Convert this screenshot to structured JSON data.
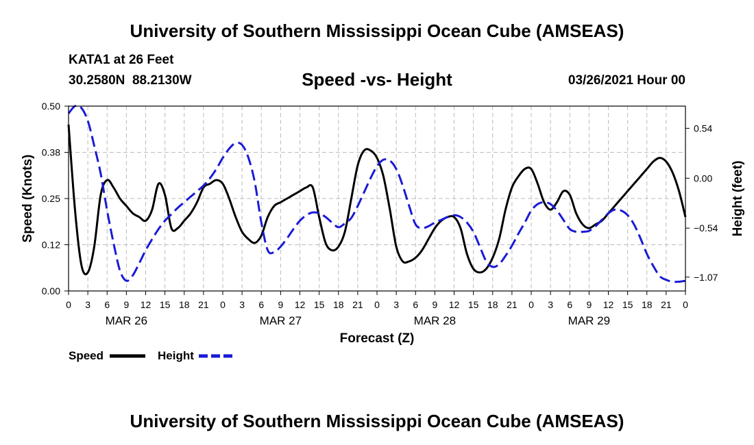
{
  "header": {
    "title": "University of Southern Mississippi Ocean Cube (AMSEAS)",
    "station": "KATA1 at 26 Feet",
    "coords": "30.2580N  88.2130W",
    "chart_title": "Speed -vs- Height",
    "timestamp": "03/26/2021 Hour 00"
  },
  "footer": {
    "title": "University of Southern Mississippi Ocean Cube (AMSEAS)"
  },
  "colors": {
    "speed": "#000000",
    "height": "#1a1ad6",
    "grid": "#bbbbbb"
  },
  "chart_data": {
    "type": "line",
    "title": "Speed -vs- Height",
    "xlabel": "Forecast (Z)",
    "ylabel": "Speed (Knots)",
    "y2label": "Height (feet)",
    "xlim": [
      0,
      96
    ],
    "ylim": [
      0,
      0.5
    ],
    "y2lim": [
      -1.22,
      0.78
    ],
    "x_ticks": [
      0,
      3,
      6,
      9,
      12,
      15,
      18,
      21,
      24,
      27,
      30,
      33,
      36,
      39,
      42,
      45,
      48,
      51,
      54,
      57,
      60,
      63,
      66,
      69,
      72,
      75,
      78,
      81,
      84,
      87,
      90,
      93,
      96
    ],
    "x_tick_labels": [
      "0",
      "3",
      "6",
      "9",
      "12",
      "15",
      "18",
      "21",
      "0",
      "3",
      "6",
      "9",
      "12",
      "15",
      "18",
      "21",
      "0",
      "3",
      "6",
      "9",
      "12",
      "15",
      "18",
      "21",
      "0",
      "3",
      "6",
      "9",
      "12",
      "15",
      "18",
      "21",
      "0"
    ],
    "y_ticks": [
      0.0,
      0.125,
      0.25,
      0.375,
      0.5
    ],
    "y_tick_labels": [
      "0.00",
      "0.12",
      "0.25",
      "0.38",
      "0.50"
    ],
    "y2_ticks": [
      -1.07,
      -0.54,
      0.0,
      0.54
    ],
    "y2_tick_labels": [
      "−1.07",
      "−0.54",
      "0.00",
      "0.54"
    ],
    "day_labels": [
      {
        "x": 9,
        "label": "MAR 26"
      },
      {
        "x": 33,
        "label": "MAR 27"
      },
      {
        "x": 57,
        "label": "MAR 28"
      },
      {
        "x": 81,
        "label": "MAR 29"
      }
    ],
    "grid": true,
    "legend_position": "bottom-left",
    "series": [
      {
        "name": "Speed",
        "axis": "left",
        "style": "solid",
        "x": [
          0,
          1,
          2,
          3,
          4,
          5,
          6,
          7,
          8,
          9,
          10,
          11,
          12,
          13,
          14,
          15,
          16,
          17,
          18,
          19,
          20,
          21,
          22,
          23,
          24,
          25,
          26,
          27,
          28,
          29,
          30,
          31,
          32,
          33,
          34,
          35,
          36,
          37,
          38,
          39,
          40,
          41,
          42,
          43,
          44,
          45,
          46,
          47,
          48,
          49,
          50,
          51,
          52,
          53,
          54,
          55,
          56,
          57,
          58,
          59,
          60,
          61,
          62,
          63,
          64,
          65,
          66,
          67,
          68,
          69,
          70,
          71,
          72,
          73,
          74,
          75,
          76,
          77,
          78,
          79,
          80,
          81,
          82,
          83,
          84,
          85,
          86,
          87,
          88,
          89,
          90,
          91,
          92,
          93,
          94,
          95,
          96
        ],
        "values": [
          0.45,
          0.22,
          0.07,
          0.05,
          0.12,
          0.26,
          0.3,
          0.28,
          0.25,
          0.23,
          0.21,
          0.2,
          0.19,
          0.22,
          0.29,
          0.26,
          0.17,
          0.17,
          0.19,
          0.21,
          0.24,
          0.28,
          0.29,
          0.3,
          0.29,
          0.25,
          0.2,
          0.16,
          0.14,
          0.13,
          0.15,
          0.2,
          0.23,
          0.24,
          0.25,
          0.26,
          0.27,
          0.28,
          0.28,
          0.2,
          0.13,
          0.11,
          0.12,
          0.16,
          0.25,
          0.34,
          0.38,
          0.38,
          0.36,
          0.31,
          0.22,
          0.12,
          0.08,
          0.08,
          0.09,
          0.11,
          0.14,
          0.17,
          0.19,
          0.2,
          0.2,
          0.17,
          0.1,
          0.06,
          0.05,
          0.06,
          0.09,
          0.14,
          0.22,
          0.28,
          0.31,
          0.33,
          0.33,
          0.29,
          0.24,
          0.22,
          0.24,
          0.27,
          0.26,
          0.21,
          0.18,
          0.17,
          0.18,
          0.19,
          0.21,
          0.23,
          0.25,
          0.27,
          0.29,
          0.31,
          0.33,
          0.35,
          0.36,
          0.35,
          0.32,
          0.27,
          0.2
        ]
      },
      {
        "name": "Height",
        "axis": "right",
        "style": "dashed",
        "x": [
          0,
          1,
          2,
          3,
          4,
          5,
          6,
          7,
          8,
          9,
          10,
          11,
          12,
          13,
          14,
          15,
          16,
          17,
          18,
          19,
          20,
          21,
          22,
          23,
          24,
          25,
          26,
          27,
          28,
          29,
          30,
          31,
          32,
          33,
          34,
          35,
          36,
          37,
          38,
          39,
          40,
          41,
          42,
          43,
          44,
          45,
          46,
          47,
          48,
          49,
          50,
          51,
          52,
          53,
          54,
          55,
          56,
          57,
          58,
          59,
          60,
          61,
          62,
          63,
          64,
          65,
          66,
          67,
          68,
          69,
          70,
          71,
          72,
          73,
          74,
          75,
          76,
          77,
          78,
          79,
          80,
          81,
          82,
          83,
          84,
          85,
          86,
          87,
          88,
          89,
          90,
          91,
          92,
          93,
          94,
          95,
          96
        ],
        "values": [
          0.7,
          0.78,
          0.76,
          0.62,
          0.35,
          0.05,
          -0.35,
          -0.7,
          -1.0,
          -1.11,
          -1.05,
          -0.92,
          -0.78,
          -0.66,
          -0.55,
          -0.46,
          -0.39,
          -0.32,
          -0.26,
          -0.2,
          -0.14,
          -0.08,
          0.0,
          0.1,
          0.22,
          0.32,
          0.38,
          0.36,
          0.22,
          -0.05,
          -0.48,
          -0.78,
          -0.8,
          -0.74,
          -0.65,
          -0.55,
          -0.46,
          -0.4,
          -0.37,
          -0.38,
          -0.42,
          -0.48,
          -0.53,
          -0.49,
          -0.43,
          -0.3,
          -0.15,
          0.0,
          0.13,
          0.2,
          0.19,
          0.1,
          -0.08,
          -0.3,
          -0.5,
          -0.54,
          -0.52,
          -0.48,
          -0.45,
          -0.42,
          -0.4,
          -0.42,
          -0.48,
          -0.58,
          -0.74,
          -0.9,
          -0.96,
          -0.93,
          -0.84,
          -0.73,
          -0.6,
          -0.48,
          -0.35,
          -0.28,
          -0.26,
          -0.28,
          -0.35,
          -0.45,
          -0.55,
          -0.58,
          -0.58,
          -0.57,
          -0.52,
          -0.45,
          -0.38,
          -0.34,
          -0.35,
          -0.4,
          -0.5,
          -0.65,
          -0.82,
          -0.95,
          -1.06,
          -1.1,
          -1.12,
          -1.12,
          -1.11
        ]
      }
    ]
  }
}
